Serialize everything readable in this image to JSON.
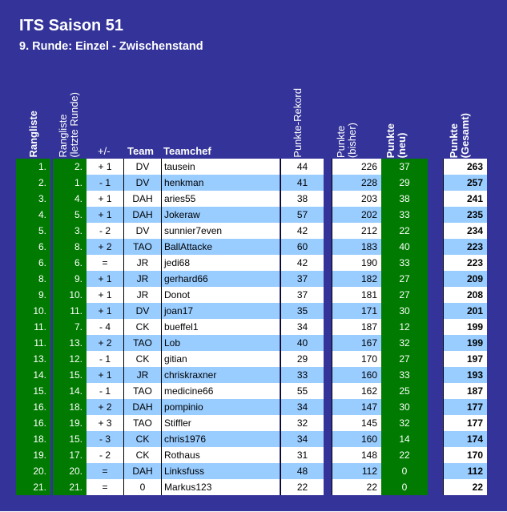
{
  "title": "ITS Saison 51",
  "subtitle": "9. Runde: Einzel - Zwischenstand",
  "headers": {
    "rang": "Rangliste",
    "rang_prev_line1": "Rangliste",
    "rang_prev_line2": "(letzte Runde)",
    "diff": "+/-",
    "team": "Team",
    "teamchef": "Teamchef",
    "rekord": "Punkte-Rekord",
    "bisher_line1": "Punkte",
    "bisher_line2": "(bisher)",
    "neu_line1": "Punkte",
    "neu_line2": "(neu)",
    "gesamt_line1": "Punkte",
    "gesamt_line2": "(Gesamt)"
  },
  "rows": [
    {
      "rank": "1.",
      "prev": "2.",
      "diff": "+ 1",
      "team": "DV",
      "name": "tausein",
      "record": "44",
      "bisher": "226",
      "neu": "37",
      "gesamt": "263"
    },
    {
      "rank": "2.",
      "prev": "1.",
      "diff": "- 1",
      "team": "DV",
      "name": "henkman",
      "record": "41",
      "bisher": "228",
      "neu": "29",
      "gesamt": "257"
    },
    {
      "rank": "3.",
      "prev": "4.",
      "diff": "+ 1",
      "team": "DAH",
      "name": "aries55",
      "record": "38",
      "bisher": "203",
      "neu": "38",
      "gesamt": "241"
    },
    {
      "rank": "4.",
      "prev": "5.",
      "diff": "+ 1",
      "team": "DAH",
      "name": "Jokeraw",
      "record": "57",
      "bisher": "202",
      "neu": "33",
      "gesamt": "235"
    },
    {
      "rank": "5.",
      "prev": "3.",
      "diff": "- 2",
      "team": "DV",
      "name": "sunnier7even",
      "record": "42",
      "bisher": "212",
      "neu": "22",
      "gesamt": "234"
    },
    {
      "rank": "6.",
      "prev": "8.",
      "diff": "+ 2",
      "team": "TAO",
      "name": "BallAttacke",
      "record": "60",
      "bisher": "183",
      "neu": "40",
      "gesamt": "223"
    },
    {
      "rank": "6.",
      "prev": "6.",
      "diff": "=",
      "team": "JR",
      "name": "jedi68",
      "record": "42",
      "bisher": "190",
      "neu": "33",
      "gesamt": "223"
    },
    {
      "rank": "8.",
      "prev": "9.",
      "diff": "+ 1",
      "team": "JR",
      "name": "gerhard66",
      "record": "37",
      "bisher": "182",
      "neu": "27",
      "gesamt": "209"
    },
    {
      "rank": "9.",
      "prev": "10.",
      "diff": "+ 1",
      "team": "JR",
      "name": "Donot",
      "record": "37",
      "bisher": "181",
      "neu": "27",
      "gesamt": "208"
    },
    {
      "rank": "10.",
      "prev": "11.",
      "diff": "+ 1",
      "team": "DV",
      "name": "joan17",
      "record": "35",
      "bisher": "171",
      "neu": "30",
      "gesamt": "201"
    },
    {
      "rank": "11.",
      "prev": "7.",
      "diff": "- 4",
      "team": "CK",
      "name": "bueffel1",
      "record": "34",
      "bisher": "187",
      "neu": "12",
      "gesamt": "199"
    },
    {
      "rank": "11.",
      "prev": "13.",
      "diff": "+ 2",
      "team": "TAO",
      "name": "Lob",
      "record": "40",
      "bisher": "167",
      "neu": "32",
      "gesamt": "199"
    },
    {
      "rank": "13.",
      "prev": "12.",
      "diff": "- 1",
      "team": "CK",
      "name": "gitian",
      "record": "29",
      "bisher": "170",
      "neu": "27",
      "gesamt": "197"
    },
    {
      "rank": "14.",
      "prev": "15.",
      "diff": "+ 1",
      "team": "JR",
      "name": "chriskraxner",
      "record": "33",
      "bisher": "160",
      "neu": "33",
      "gesamt": "193"
    },
    {
      "rank": "15.",
      "prev": "14.",
      "diff": "- 1",
      "team": "TAO",
      "name": "medicine66",
      "record": "55",
      "bisher": "162",
      "neu": "25",
      "gesamt": "187"
    },
    {
      "rank": "16.",
      "prev": "18.",
      "diff": "+ 2",
      "team": "DAH",
      "name": "pompinio",
      "record": "34",
      "bisher": "147",
      "neu": "30",
      "gesamt": "177"
    },
    {
      "rank": "16.",
      "prev": "19.",
      "diff": "+ 3",
      "team": "TAO",
      "name": "Stiffler",
      "record": "32",
      "bisher": "145",
      "neu": "32",
      "gesamt": "177"
    },
    {
      "rank": "18.",
      "prev": "15.",
      "diff": "- 3",
      "team": "CK",
      "name": "chris1976",
      "record": "34",
      "bisher": "160",
      "neu": "14",
      "gesamt": "174"
    },
    {
      "rank": "19.",
      "prev": "17.",
      "diff": "- 2",
      "team": "CK",
      "name": "Rothaus",
      "record": "31",
      "bisher": "148",
      "neu": "22",
      "gesamt": "170"
    },
    {
      "rank": "20.",
      "prev": "20.",
      "diff": "=",
      "team": "DAH",
      "name": "Linksfuss",
      "record": "48",
      "bisher": "112",
      "neu": "0",
      "gesamt": "112"
    },
    {
      "rank": "21.",
      "prev": "21.",
      "diff": "=",
      "team": "0",
      "name": "Markus123",
      "record": "22",
      "bisher": "22",
      "neu": "0",
      "gesamt": "22"
    }
  ],
  "colors": {
    "background": "#333399",
    "rank_green": "#007a00",
    "row_white": "#ffffff",
    "row_blue": "#99ccff"
  }
}
